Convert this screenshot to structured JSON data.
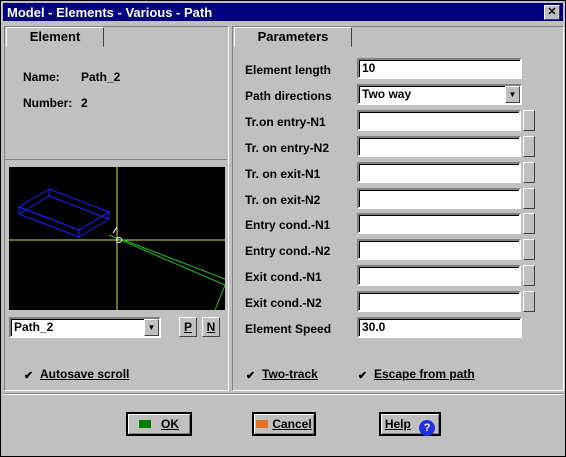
{
  "window": {
    "title": "Model - Elements - Various - Path",
    "close_glyph": "✕"
  },
  "element_panel": {
    "header": "Element",
    "name_label": "Name:",
    "name_value": "Path_2",
    "number_label": "Number:",
    "number_value": "2",
    "selector_value": "Path_2",
    "p_button": "P",
    "n_button": "N",
    "autosave_label": "Autosave scroll",
    "autosave_checked": true
  },
  "parameters_panel": {
    "header": "Parameters",
    "rows": [
      {
        "label": "Element length",
        "value": "10"
      },
      {
        "label": "Path directions",
        "value": "Two way"
      },
      {
        "label": "Tr.on entry-N1",
        "value": ""
      },
      {
        "label": "Tr. on entry-N2",
        "value": ""
      },
      {
        "label": "Tr. on exit-N1",
        "value": ""
      },
      {
        "label": "Tr. on exit-N2",
        "value": ""
      },
      {
        "label": "Entry cond.-N1",
        "value": ""
      },
      {
        "label": "Entry cond.-N2",
        "value": ""
      },
      {
        "label": "Exit cond.-N1",
        "value": ""
      },
      {
        "label": "Exit cond.-N2",
        "value": ""
      },
      {
        "label": "Element Speed",
        "value": "30.0"
      }
    ],
    "two_track_label": "Two-track",
    "two_track_checked": true,
    "escape_label": "Escape from path",
    "escape_checked": true
  },
  "buttons": {
    "ok": "OK",
    "cancel": "Cancel",
    "help": "Help"
  },
  "colors": {
    "titlebar": "#000080",
    "face": "#c0c0c0",
    "preview_bg": "#000000"
  }
}
